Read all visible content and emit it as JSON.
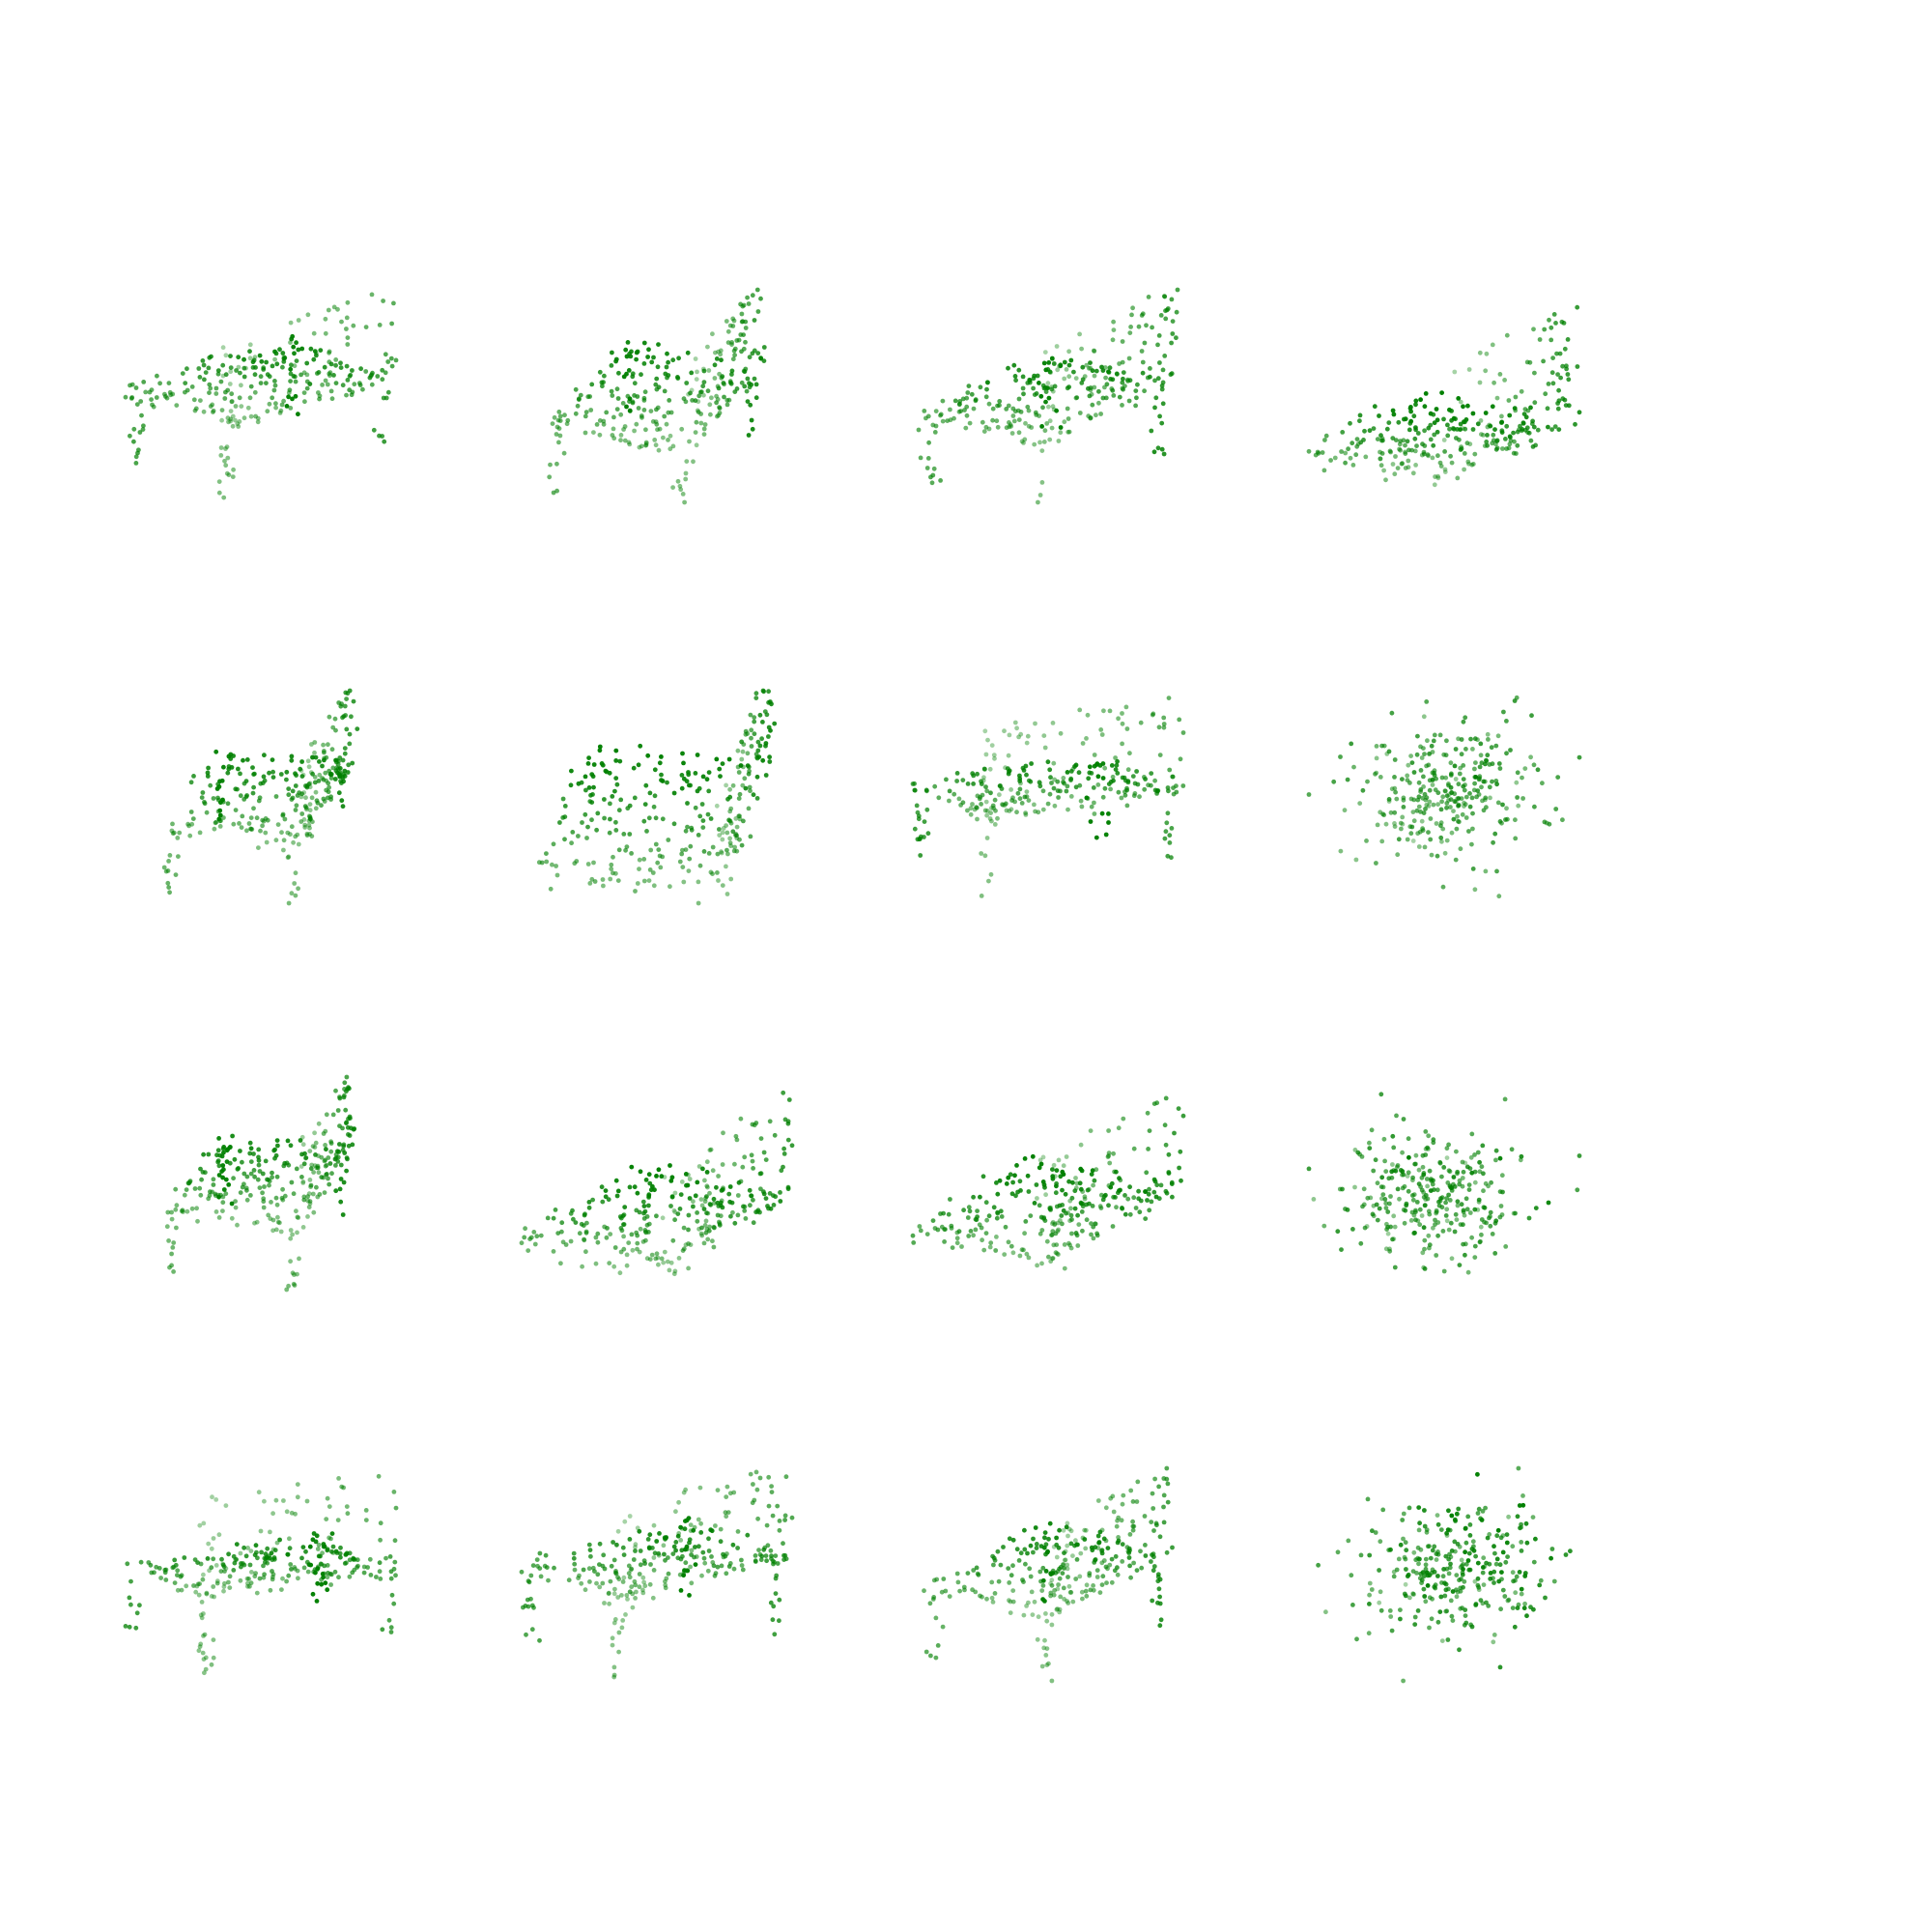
{
  "figure": {
    "background_color": "#ffffff"
  },
  "chart_data": {
    "type": "scatter",
    "projection": "3d",
    "axes_visible": false,
    "grid": false,
    "marker_color": "#008000",
    "marker_shape": "circle",
    "depth_shading": true,
    "panel_layout": {
      "rows": 4,
      "cols": 4
    },
    "panels": [
      {
        "row": 0,
        "col": 0,
        "points": 300,
        "shape": "chair-front",
        "elevation": 20,
        "azimuth": -40,
        "legs": true,
        "seed": 11
      },
      {
        "row": 0,
        "col": 1,
        "points": 300,
        "shape": "chair-tilted",
        "elevation": 25,
        "azimuth": -70,
        "legs": true,
        "seed": 12
      },
      {
        "row": 0,
        "col": 2,
        "points": 300,
        "shape": "chair-tilted",
        "elevation": 20,
        "azimuth": -55,
        "legs": true,
        "seed": 13
      },
      {
        "row": 0,
        "col": 3,
        "points": 300,
        "shape": "chair-tilted",
        "elevation": 15,
        "azimuth": -60,
        "legs": false,
        "seed": 14
      },
      {
        "row": 1,
        "col": 0,
        "points": 300,
        "shape": "chair-diagonal",
        "elevation": 25,
        "azimuth": -75,
        "legs": true,
        "seed": 21
      },
      {
        "row": 1,
        "col": 1,
        "points": 300,
        "shape": "chair-diagonal",
        "elevation": 30,
        "azimuth": -80,
        "legs": false,
        "seed": 22
      },
      {
        "row": 1,
        "col": 2,
        "points": 300,
        "shape": "chair-front",
        "elevation": 15,
        "azimuth": -30,
        "legs": true,
        "seed": 23
      },
      {
        "row": 1,
        "col": 3,
        "points": 300,
        "shape": "blob",
        "elevation": 20,
        "azimuth": -45,
        "legs": false,
        "seed": 24
      },
      {
        "row": 2,
        "col": 0,
        "points": 300,
        "shape": "chair-diagonal",
        "elevation": 25,
        "azimuth": -75,
        "legs": true,
        "seed": 31
      },
      {
        "row": 2,
        "col": 1,
        "points": 300,
        "shape": "chair-tilted",
        "elevation": 20,
        "azimuth": -60,
        "legs": false,
        "seed": 32
      },
      {
        "row": 2,
        "col": 2,
        "points": 300,
        "shape": "chair-tilted",
        "elevation": 20,
        "azimuth": -55,
        "legs": false,
        "seed": 33
      },
      {
        "row": 2,
        "col": 3,
        "points": 300,
        "shape": "blob",
        "elevation": 20,
        "azimuth": -45,
        "legs": false,
        "seed": 34
      },
      {
        "row": 3,
        "col": 0,
        "points": 300,
        "shape": "chair-front",
        "elevation": 15,
        "azimuth": -30,
        "legs": true,
        "seed": 41
      },
      {
        "row": 3,
        "col": 1,
        "points": 300,
        "shape": "chair-front",
        "elevation": 18,
        "azimuth": -40,
        "legs": true,
        "seed": 42
      },
      {
        "row": 3,
        "col": 2,
        "points": 300,
        "shape": "chair-tilted",
        "elevation": 20,
        "azimuth": -55,
        "legs": true,
        "seed": 43
      },
      {
        "row": 3,
        "col": 3,
        "points": 300,
        "shape": "blob",
        "elevation": 20,
        "azimuth": -45,
        "legs": false,
        "seed": 44
      }
    ]
  }
}
